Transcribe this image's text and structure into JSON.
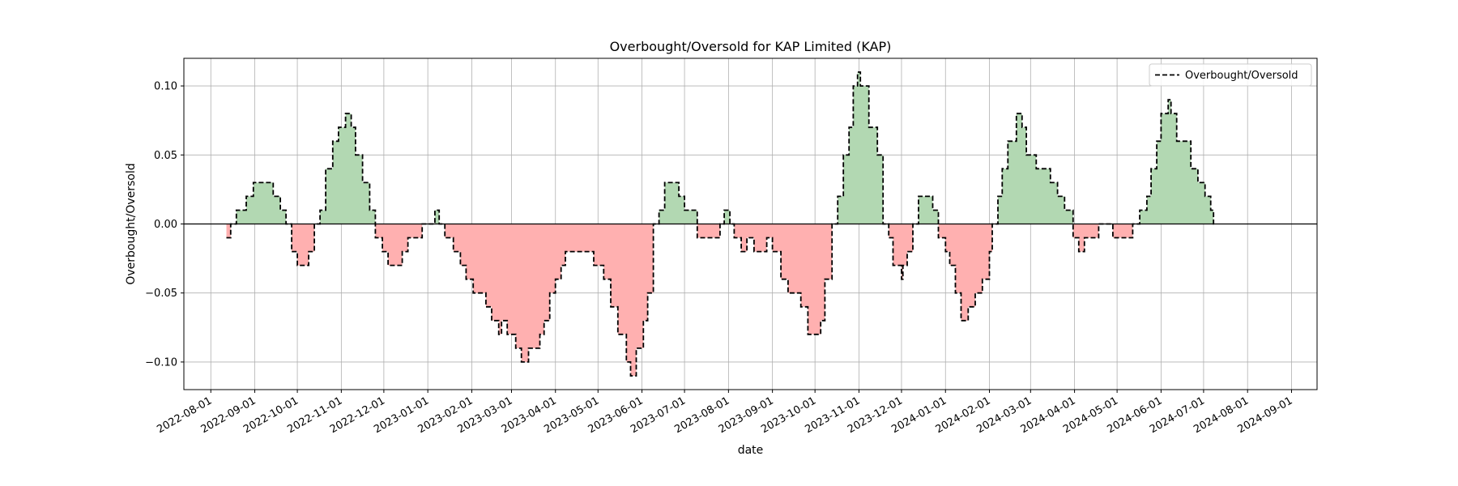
{
  "chart_data": {
    "type": "line",
    "title": "Overbought/Oversold for KAP Limited (KAP)",
    "xlabel": "date",
    "ylabel": "Overbought/Oversold",
    "xlim": [
      "2022-07-13",
      "2024-09-19"
    ],
    "ylim": [
      -0.12,
      0.12
    ],
    "yticks": [
      -0.1,
      -0.05,
      0.0,
      0.05,
      0.1
    ],
    "ytick_labels": [
      "−0.10",
      "−0.05",
      "0.00",
      "0.05",
      "0.10"
    ],
    "xticks": [
      "2022-08-01",
      "2022-09-01",
      "2022-10-01",
      "2022-11-01",
      "2022-12-01",
      "2023-01-01",
      "2023-02-01",
      "2023-03-01",
      "2023-04-01",
      "2023-05-01",
      "2023-06-01",
      "2023-07-01",
      "2023-08-01",
      "2023-09-01",
      "2023-10-01",
      "2023-11-01",
      "2023-12-01",
      "2024-01-01",
      "2024-02-01",
      "2024-03-01",
      "2024-04-01",
      "2024-05-01",
      "2024-06-01",
      "2024-07-01",
      "2024-08-01",
      "2024-09-01"
    ],
    "grid": true,
    "legend": {
      "position": "top-right"
    },
    "fill_above_color": "#b2d8b2",
    "fill_below_color": "#ffb0b0",
    "line_color": "#000000",
    "zero_line_color": "#000000",
    "series": [
      {
        "name": "Overbought/Oversold",
        "style": "dashed",
        "points": [
          [
            "2022-08-12",
            -0.01
          ],
          [
            "2022-08-15",
            0.0
          ],
          [
            "2022-08-19",
            0.01
          ],
          [
            "2022-08-26",
            0.02
          ],
          [
            "2022-08-31",
            0.03
          ],
          [
            "2022-09-14",
            0.02
          ],
          [
            "2022-09-19",
            0.01
          ],
          [
            "2022-09-23",
            0.0
          ],
          [
            "2022-09-27",
            -0.02
          ],
          [
            "2022-10-01",
            -0.03
          ],
          [
            "2022-10-09",
            -0.02
          ],
          [
            "2022-10-13",
            0.0
          ],
          [
            "2022-10-17",
            0.01
          ],
          [
            "2022-10-21",
            0.04
          ],
          [
            "2022-10-26",
            0.06
          ],
          [
            "2022-10-30",
            0.07
          ],
          [
            "2022-11-04",
            0.08
          ],
          [
            "2022-11-08",
            0.07
          ],
          [
            "2022-11-11",
            0.05
          ],
          [
            "2022-11-16",
            0.03
          ],
          [
            "2022-11-21",
            0.01
          ],
          [
            "2022-11-25",
            -0.01
          ],
          [
            "2022-11-30",
            -0.02
          ],
          [
            "2022-12-04",
            -0.03
          ],
          [
            "2022-12-14",
            -0.02
          ],
          [
            "2022-12-18",
            -0.01
          ],
          [
            "2022-12-28",
            0.0
          ],
          [
            "2023-01-06",
            0.01
          ],
          [
            "2023-01-09",
            0.0
          ],
          [
            "2023-01-13",
            -0.01
          ],
          [
            "2023-01-19",
            -0.02
          ],
          [
            "2023-01-24",
            -0.03
          ],
          [
            "2023-01-28",
            -0.04
          ],
          [
            "2023-02-02",
            -0.05
          ],
          [
            "2023-02-11",
            -0.06
          ],
          [
            "2023-02-15",
            -0.07
          ],
          [
            "2023-02-20",
            -0.08
          ],
          [
            "2023-02-22",
            -0.07
          ],
          [
            "2023-02-26",
            -0.08
          ],
          [
            "2023-03-04",
            -0.09
          ],
          [
            "2023-03-08",
            -0.1
          ],
          [
            "2023-03-13",
            -0.09
          ],
          [
            "2023-03-21",
            -0.08
          ],
          [
            "2023-03-24",
            -0.07
          ],
          [
            "2023-03-28",
            -0.05
          ],
          [
            "2023-04-01",
            -0.04
          ],
          [
            "2023-04-05",
            -0.03
          ],
          [
            "2023-04-08",
            -0.02
          ],
          [
            "2023-04-28",
            -0.03
          ],
          [
            "2023-05-05",
            -0.04
          ],
          [
            "2023-05-10",
            -0.06
          ],
          [
            "2023-05-15",
            -0.08
          ],
          [
            "2023-05-21",
            -0.1
          ],
          [
            "2023-05-24",
            -0.11
          ],
          [
            "2023-05-28",
            -0.09
          ],
          [
            "2023-06-02",
            -0.07
          ],
          [
            "2023-06-05",
            -0.05
          ],
          [
            "2023-06-09",
            0.0
          ],
          [
            "2023-06-13",
            0.01
          ],
          [
            "2023-06-17",
            0.03
          ],
          [
            "2023-06-27",
            0.02
          ],
          [
            "2023-07-01",
            0.01
          ],
          [
            "2023-07-10",
            -0.01
          ],
          [
            "2023-07-26",
            0.0
          ],
          [
            "2023-07-29",
            0.01
          ],
          [
            "2023-08-02",
            0.0
          ],
          [
            "2023-08-05",
            -0.01
          ],
          [
            "2023-08-10",
            -0.02
          ],
          [
            "2023-08-14",
            -0.01
          ],
          [
            "2023-08-19",
            -0.02
          ],
          [
            "2023-08-28",
            -0.01
          ],
          [
            "2023-09-01",
            -0.02
          ],
          [
            "2023-09-07",
            -0.04
          ],
          [
            "2023-09-12",
            -0.05
          ],
          [
            "2023-09-21",
            -0.06
          ],
          [
            "2023-09-26",
            -0.08
          ],
          [
            "2023-10-05",
            -0.07
          ],
          [
            "2023-10-08",
            -0.04
          ],
          [
            "2023-10-13",
            0.0
          ],
          [
            "2023-10-17",
            0.02
          ],
          [
            "2023-10-21",
            0.05
          ],
          [
            "2023-10-25",
            0.07
          ],
          [
            "2023-10-28",
            0.1
          ],
          [
            "2023-10-31",
            0.11
          ],
          [
            "2023-11-02",
            0.1
          ],
          [
            "2023-11-08",
            0.07
          ],
          [
            "2023-11-14",
            0.05
          ],
          [
            "2023-11-18",
            0.0
          ],
          [
            "2023-11-22",
            -0.01
          ],
          [
            "2023-11-25",
            -0.03
          ],
          [
            "2023-12-01",
            -0.04
          ],
          [
            "2023-12-02",
            -0.03
          ],
          [
            "2023-12-05",
            -0.02
          ],
          [
            "2023-12-09",
            0.0
          ],
          [
            "2023-12-13",
            0.02
          ],
          [
            "2023-12-23",
            0.01
          ],
          [
            "2023-12-27",
            -0.01
          ],
          [
            "2024-01-01",
            -0.02
          ],
          [
            "2024-01-04",
            -0.03
          ],
          [
            "2024-01-08",
            -0.05
          ],
          [
            "2024-01-12",
            -0.07
          ],
          [
            "2024-01-17",
            -0.06
          ],
          [
            "2024-01-22",
            -0.05
          ],
          [
            "2024-01-27",
            -0.04
          ],
          [
            "2024-02-01",
            -0.02
          ],
          [
            "2024-02-03",
            0.0
          ],
          [
            "2024-02-07",
            0.02
          ],
          [
            "2024-02-10",
            0.04
          ],
          [
            "2024-02-14",
            0.06
          ],
          [
            "2024-02-20",
            0.08
          ],
          [
            "2024-02-24",
            0.07
          ],
          [
            "2024-02-27",
            0.05
          ],
          [
            "2024-03-05",
            0.04
          ],
          [
            "2024-03-15",
            0.03
          ],
          [
            "2024-03-20",
            0.02
          ],
          [
            "2024-03-25",
            0.01
          ],
          [
            "2024-03-31",
            -0.01
          ],
          [
            "2024-04-04",
            -0.02
          ],
          [
            "2024-04-08",
            -0.01
          ],
          [
            "2024-04-18",
            0.0
          ],
          [
            "2024-04-28",
            -0.01
          ],
          [
            "2024-05-12",
            0.0
          ],
          [
            "2024-05-17",
            0.01
          ],
          [
            "2024-05-22",
            0.02
          ],
          [
            "2024-05-25",
            0.04
          ],
          [
            "2024-05-29",
            0.06
          ],
          [
            "2024-06-01",
            0.08
          ],
          [
            "2024-06-06",
            0.09
          ],
          [
            "2024-06-08",
            0.08
          ],
          [
            "2024-06-12",
            0.06
          ],
          [
            "2024-06-22",
            0.04
          ],
          [
            "2024-06-27",
            0.03
          ],
          [
            "2024-07-02",
            0.02
          ],
          [
            "2024-07-06",
            0.01
          ],
          [
            "2024-07-08",
            0.0
          ]
        ]
      }
    ]
  }
}
